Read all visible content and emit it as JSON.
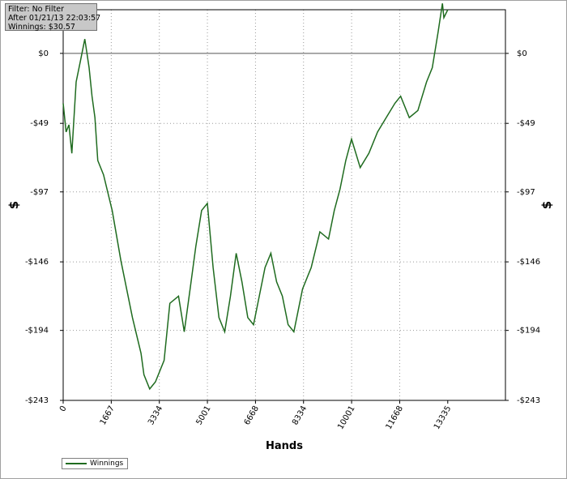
{
  "info_box": {
    "line1": "Filter: No Filter",
    "line2": "After 01/21/13 22:03:57",
    "line3": "Winnings: $30.57"
  },
  "legend": {
    "label": "Winnings",
    "color": "#1f6b1f"
  },
  "chart_data": {
    "type": "line",
    "title": "",
    "xlabel": "Hands",
    "ylabel": "$",
    "xlim": [
      0,
      15335
    ],
    "ylim": [
      -243,
      30.57
    ],
    "grid": true,
    "legend_position": "bottom-left",
    "x_ticks": [
      0,
      1667,
      3334,
      5001,
      6668,
      8334,
      10001,
      11668,
      13335
    ],
    "x_tick_labels": [
      "0",
      "1667",
      "3334",
      "5001",
      "6668",
      "8334",
      "10001",
      "11668",
      "13335"
    ],
    "y_ticks": [
      0,
      -49,
      -97,
      -146,
      -194,
      -243
    ],
    "y_tick_labels": [
      "$0",
      "-$49",
      "-$97",
      "-$146",
      "-$194",
      "-$243"
    ],
    "zero_line": 0,
    "series": [
      {
        "name": "Winnings",
        "color": "#1f6b1f",
        "x": [
          0,
          100,
          200,
          300,
          450,
          600,
          750,
          900,
          1000,
          1100,
          1200,
          1400,
          1700,
          2000,
          2400,
          2700,
          2800,
          3000,
          3200,
          3500,
          3700,
          4000,
          4200,
          4400,
          4600,
          4800,
          5000,
          5200,
          5400,
          5600,
          5800,
          6000,
          6200,
          6400,
          6600,
          6800,
          7000,
          7200,
          7400,
          7600,
          7800,
          8000,
          8300,
          8600,
          8900,
          9200,
          9400,
          9600,
          9800,
          10000,
          10300,
          10600,
          10900,
          11200,
          11500,
          11700,
          12000,
          12300,
          12600,
          12800,
          13000,
          13150,
          13200,
          13335
        ],
        "y": [
          -35,
          -55,
          -50,
          -70,
          -20,
          -5,
          10,
          -10,
          -30,
          -45,
          -75,
          -85,
          -110,
          -145,
          -185,
          -210,
          -225,
          -235,
          -230,
          -215,
          -175,
          -170,
          -195,
          -165,
          -135,
          -110,
          -105,
          -150,
          -185,
          -195,
          -170,
          -140,
          -160,
          -185,
          -190,
          -170,
          -150,
          -140,
          -160,
          -170,
          -190,
          -195,
          -165,
          -150,
          -125,
          -130,
          -110,
          -95,
          -75,
          -60,
          -80,
          -70,
          -55,
          -45,
          -35,
          -30,
          -45,
          -40,
          -20,
          -10,
          15,
          35,
          25,
          30.57
        ]
      }
    ]
  }
}
